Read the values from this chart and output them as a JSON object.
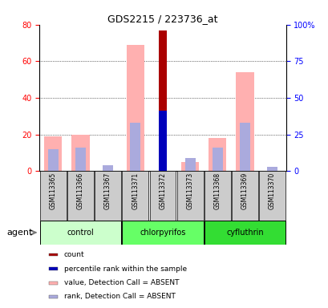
{
  "title": "GDS2215 / 223736_at",
  "samples": [
    "GSM113365",
    "GSM113366",
    "GSM113367",
    "GSM113371",
    "GSM113372",
    "GSM113373",
    "GSM113368",
    "GSM113369",
    "GSM113370"
  ],
  "groups": [
    {
      "name": "control",
      "color": "#ccffcc",
      "samples": [
        0,
        1,
        2
      ]
    },
    {
      "name": "chlorpyrifos",
      "color": "#66ff66",
      "samples": [
        3,
        4,
        5
      ]
    },
    {
      "name": "cyfluthrin",
      "color": "#33dd33",
      "samples": [
        6,
        7,
        8
      ]
    }
  ],
  "value_absent": [
    19,
    20,
    0,
    69,
    0,
    5,
    18,
    54,
    0
  ],
  "rank_absent": [
    15,
    16,
    4,
    33,
    0,
    9,
    16,
    33,
    3
  ],
  "count_present": [
    0,
    0,
    0,
    0,
    77,
    0,
    0,
    0,
    0
  ],
  "pct_rank_present": [
    0,
    0,
    0,
    0,
    41,
    0,
    0,
    0,
    0
  ],
  "ylim_left": [
    0,
    80
  ],
  "ylim_right": [
    0,
    100
  ],
  "yticks_left": [
    0,
    20,
    40,
    60,
    80
  ],
  "yticks_right": [
    0,
    25,
    50,
    75,
    100
  ],
  "color_count": "#aa0000",
  "color_pct_rank": "#0000bb",
  "color_value_absent": "#ffb0b0",
  "color_rank_absent": "#aaaadd",
  "legend_items": [
    {
      "label": "count",
      "color": "#aa0000"
    },
    {
      "label": "percentile rank within the sample",
      "color": "#0000bb"
    },
    {
      "label": "value, Detection Call = ABSENT",
      "color": "#ffb0b0"
    },
    {
      "label": "rank, Detection Call = ABSENT",
      "color": "#aaaadd"
    }
  ],
  "background_label": "#cccccc"
}
